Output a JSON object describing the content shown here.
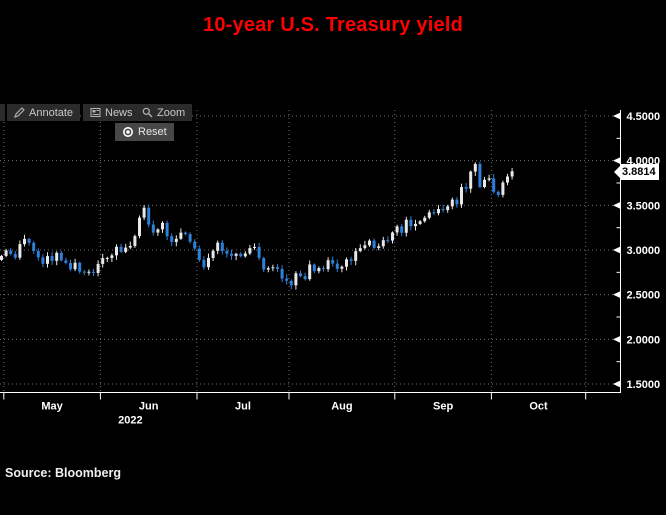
{
  "title": "10-year U.S. Treasury yield",
  "source_note": "Source: Bloomberg",
  "toolbar": {
    "annotate_label": "Annotate",
    "news_label": "News",
    "zoom_label": "Zoom",
    "reset_label": "Reset"
  },
  "last_price_label": "3.8814",
  "colors": {
    "title_red": "#ff0000",
    "candle_up": "#e8e8e8",
    "candle_down": "#2e80d9",
    "axis_white": "#ffffff",
    "gridline_gray": "#6e6e6e",
    "badge_bg": "#ffffff"
  },
  "chart_data": {
    "type": "candlestick",
    "title": "10-year U.S. Treasury yield",
    "xlabel": "",
    "ylabel": "",
    "ylim": [
      1.41,
      4.57
    ],
    "grid": "dotted",
    "legend": "none",
    "y_ticks": [
      {
        "v": 4.5,
        "label": "4.5000"
      },
      {
        "v": 4.0,
        "label": "4.0000"
      },
      {
        "v": 3.5,
        "label": "3.5000"
      },
      {
        "v": 3.0,
        "label": "3.0000"
      },
      {
        "v": 2.5,
        "label": "2.5000"
      },
      {
        "v": 2.0,
        "label": "2.0000"
      },
      {
        "v": 1.5,
        "label": "1.5000"
      }
    ],
    "x_month_labels": [
      "May",
      "Jun",
      "Jul",
      "Aug",
      "Sep",
      "Oct"
    ],
    "year_label": "2022",
    "last_close": 3.8814,
    "dates": [
      "2022-04-29",
      "2022-05-02",
      "2022-05-03",
      "2022-05-04",
      "2022-05-05",
      "2022-05-06",
      "2022-05-09",
      "2022-05-10",
      "2022-05-11",
      "2022-05-12",
      "2022-05-13",
      "2022-05-16",
      "2022-05-17",
      "2022-05-18",
      "2022-05-19",
      "2022-05-20",
      "2022-05-23",
      "2022-05-24",
      "2022-05-25",
      "2022-05-26",
      "2022-05-27",
      "2022-05-31",
      "2022-06-01",
      "2022-06-02",
      "2022-06-03",
      "2022-06-06",
      "2022-06-07",
      "2022-06-08",
      "2022-06-09",
      "2022-06-10",
      "2022-06-13",
      "2022-06-14",
      "2022-06-15",
      "2022-06-16",
      "2022-06-17",
      "2022-06-21",
      "2022-06-22",
      "2022-06-23",
      "2022-06-24",
      "2022-06-27",
      "2022-06-28",
      "2022-06-29",
      "2022-06-30",
      "2022-07-01",
      "2022-07-05",
      "2022-07-06",
      "2022-07-07",
      "2022-07-08",
      "2022-07-11",
      "2022-07-12",
      "2022-07-13",
      "2022-07-14",
      "2022-07-15",
      "2022-07-18",
      "2022-07-19",
      "2022-07-20",
      "2022-07-21",
      "2022-07-22",
      "2022-07-25",
      "2022-07-26",
      "2022-07-27",
      "2022-07-28",
      "2022-07-29",
      "2022-08-01",
      "2022-08-02",
      "2022-08-03",
      "2022-08-04",
      "2022-08-05",
      "2022-08-08",
      "2022-08-09",
      "2022-08-10",
      "2022-08-11",
      "2022-08-12",
      "2022-08-15",
      "2022-08-16",
      "2022-08-17",
      "2022-08-18",
      "2022-08-19",
      "2022-08-22",
      "2022-08-23",
      "2022-08-24",
      "2022-08-25",
      "2022-08-26",
      "2022-08-29",
      "2022-08-30",
      "2022-08-31",
      "2022-09-01",
      "2022-09-02",
      "2022-09-06",
      "2022-09-07",
      "2022-09-08",
      "2022-09-09",
      "2022-09-12",
      "2022-09-13",
      "2022-09-14",
      "2022-09-15",
      "2022-09-16",
      "2022-09-19",
      "2022-09-20",
      "2022-09-21",
      "2022-09-22",
      "2022-09-23",
      "2022-09-26",
      "2022-09-27",
      "2022-09-28",
      "2022-09-29",
      "2022-09-30",
      "2022-10-03",
      "2022-10-04",
      "2022-10-05",
      "2022-10-06",
      "2022-10-07"
    ],
    "close": [
      2.934,
      2.995,
      2.957,
      2.914,
      3.066,
      3.124,
      3.08,
      2.99,
      2.918,
      2.845,
      2.932,
      2.879,
      2.969,
      2.884,
      2.855,
      2.785,
      2.857,
      2.758,
      2.746,
      2.756,
      2.743,
      2.844,
      2.909,
      2.911,
      2.94,
      3.036,
      2.979,
      3.027,
      3.045,
      3.156,
      3.362,
      3.473,
      3.285,
      3.195,
      3.231,
      3.304,
      3.155,
      3.09,
      3.125,
      3.194,
      3.178,
      3.093,
      3.016,
      2.889,
      2.808,
      2.911,
      2.991,
      3.082,
      2.99,
      2.958,
      2.935,
      2.957,
      2.929,
      2.961,
      3.022,
      3.034,
      2.91,
      2.781,
      2.796,
      2.807,
      2.787,
      2.68,
      2.655,
      2.605,
      2.739,
      2.707,
      2.674,
      2.838,
      2.763,
      2.797,
      2.786,
      2.886,
      2.848,
      2.79,
      2.813,
      2.895,
      2.878,
      2.987,
      3.021,
      3.053,
      3.105,
      3.023,
      3.042,
      3.109,
      3.106,
      3.196,
      3.264,
      3.193,
      3.339,
      3.267,
      3.292,
      3.321,
      3.361,
      3.422,
      3.412,
      3.459,
      3.447,
      3.489,
      3.564,
      3.511,
      3.705,
      3.686,
      3.878,
      3.963,
      3.705,
      3.786,
      3.802,
      3.651,
      3.617,
      3.755,
      3.823,
      3.8814
    ]
  }
}
